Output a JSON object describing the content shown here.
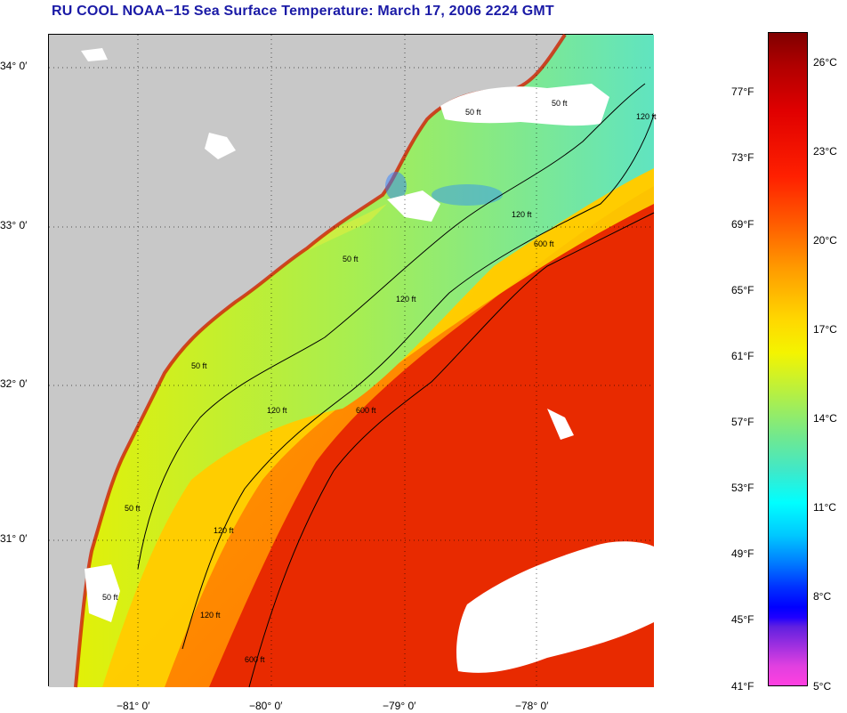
{
  "title": "RU COOL  NOAA−15  Sea Surface Temperature:  March 17, 2006 2224 GMT",
  "axes": {
    "longitude_labels": [
      "−81° 0′",
      "−80° 0′",
      "−79° 0′",
      "−78° 0′"
    ],
    "latitude_labels": [
      "34° 0′",
      "33° 0′",
      "32° 0′",
      "31° 0′"
    ]
  },
  "contours": {
    "labels": [
      "50 ft",
      "50 ft",
      "50 ft",
      "50 ft",
      "50 ft",
      "50 ft",
      "120 ft",
      "120 ft",
      "120 ft",
      "120 ft",
      "120 ft",
      "120 ft",
      "600 ft",
      "600 ft",
      "600 ft"
    ]
  },
  "colorbar": {
    "fahrenheit_labels": [
      "77°F",
      "73°F",
      "69°F",
      "65°F",
      "61°F",
      "57°F",
      "53°F",
      "49°F",
      "45°F",
      "41°F"
    ],
    "celsius_labels": [
      "26°C",
      "23°C",
      "20°C",
      "17°C",
      "14°C",
      "11°C",
      "8°C",
      "5°C"
    ]
  },
  "colors": {
    "title": "#1a1aa6",
    "land": "#c8c8c8",
    "cloud": "#ffffff",
    "warm": "#e82000",
    "cool": "#50e0b8"
  }
}
